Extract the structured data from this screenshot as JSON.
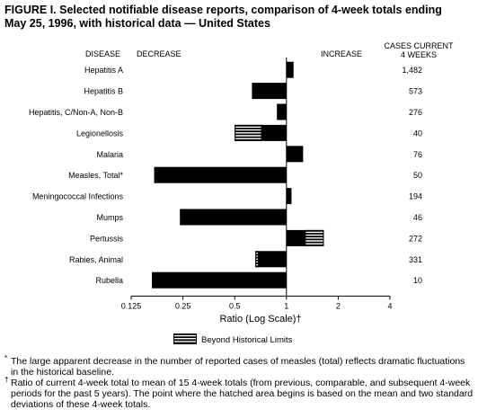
{
  "figure": {
    "title_line1": "FIGURE I. Selected notifiable disease reports, comparison of 4-week totals ending",
    "title_line2": "May 25, 1996, with historical data — United States"
  },
  "headers": {
    "disease": "DISEASE",
    "decrease": "DECREASE",
    "increase": "INCREASE",
    "cases_line1": "CASES CURRENT",
    "cases_line2": "4 WEEKS"
  },
  "legend": {
    "label": "Beyond Historical Limits"
  },
  "footnotes": [
    {
      "mark": "*",
      "text": "The large apparent decrease in the number of reported cases of measles (total) reflects dramatic fluctuations in the historical baseline."
    },
    {
      "mark": "†",
      "text": "Ratio of current 4-week total to mean of 15 4-week totals (from previous, comparable, and subsequent 4-week periods for the past 5 years). The point where the hatched area begins is based on the mean and two standard deviations of these 4-week totals."
    }
  ],
  "colors": {
    "bar": "#000000",
    "hatch": "#ffffff",
    "axis": "#000000"
  },
  "chart_data": {
    "type": "bar",
    "orientation": "horizontal",
    "xlabel": "Ratio (Log Scale)†",
    "xscale": "log2",
    "xlim": [
      0.125,
      4
    ],
    "baseline": 1,
    "xticks": [
      0.125,
      0.25,
      0.5,
      1,
      2,
      4
    ],
    "xtick_labels": [
      "0.125",
      "0.25",
      "0.5",
      "1",
      "2",
      "4"
    ],
    "categories": [
      "Hepatitis A",
      "Hepatitis B",
      "Hepatitis, C/Non-A, Non-B",
      "Legionellosis",
      "Malaria",
      "Measles, Total*",
      "Meningococcal Infections",
      "Mumps",
      "Pertussis",
      "Rabies, Animal",
      "Rubella"
    ],
    "values": [
      1.1,
      0.63,
      0.88,
      0.5,
      1.25,
      0.17,
      1.07,
      0.24,
      1.65,
      0.66,
      0.165
    ],
    "beyond_historical_limits_from": [
      null,
      null,
      null,
      0.72,
      null,
      null,
      null,
      null,
      1.28,
      0.69,
      null
    ],
    "cases_current_4_weeks": [
      "1,482",
      "573",
      "276",
      "40",
      "76",
      "50",
      "194",
      "46",
      "272",
      "331",
      "10"
    ]
  }
}
